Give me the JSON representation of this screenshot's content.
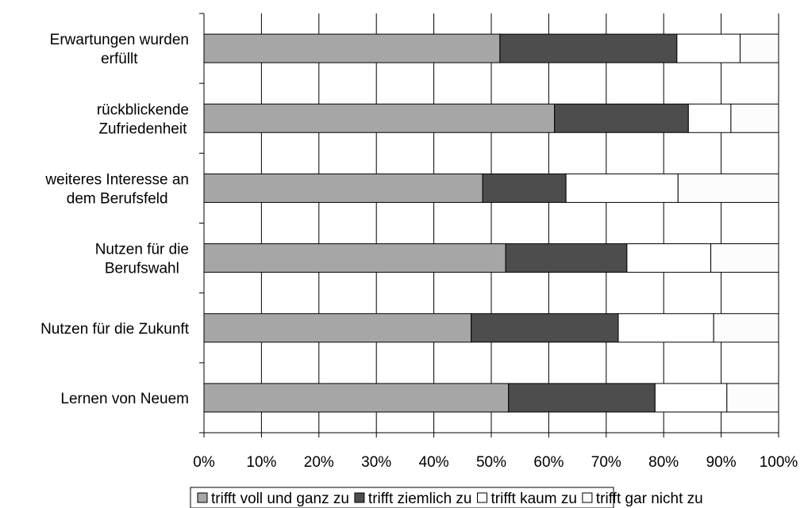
{
  "chart_data": {
    "type": "bar",
    "orientation": "horizontal",
    "stacked": "percent",
    "categories": [
      [
        "Erwartungen wurden",
        "erfüllt"
      ],
      [
        "rückblickende",
        "Zufriedenheit"
      ],
      [
        "weiteres Interesse an",
        "dem Berufsfeld"
      ],
      [
        "Nutzen für die",
        "Berufswahl"
      ],
      [
        "Nutzen für die Zukunft"
      ],
      [
        "Lernen von Neuem"
      ]
    ],
    "series": [
      {
        "name": "trifft voll und ganz zu",
        "values": [
          51.5,
          61,
          48.5,
          52.5,
          46.5,
          53
        ],
        "color": "#a6a6a6"
      },
      {
        "name": "trifft ziemlich zu",
        "values": [
          30.8,
          23.3,
          14.5,
          21.1,
          25.6,
          25.5
        ],
        "color": "#4d4d4d"
      },
      {
        "name": "trifft kaum zu",
        "values": [
          11,
          7.4,
          19.5,
          14.6,
          16.6,
          12.5
        ],
        "color": "#ffffff"
      },
      {
        "name": "trifft gar nicht zu",
        "values": [
          6.7,
          8.3,
          17.5,
          11.8,
          11.3,
          9
        ],
        "color": "#fcfcfc"
      }
    ],
    "xlim": [
      0,
      100
    ],
    "xticks": [
      "0%",
      "10%",
      "20%",
      "30%",
      "40%",
      "50%",
      "60%",
      "70%",
      "80%",
      "90%",
      "100%"
    ],
    "grid": true,
    "legend_position": "bottom"
  }
}
